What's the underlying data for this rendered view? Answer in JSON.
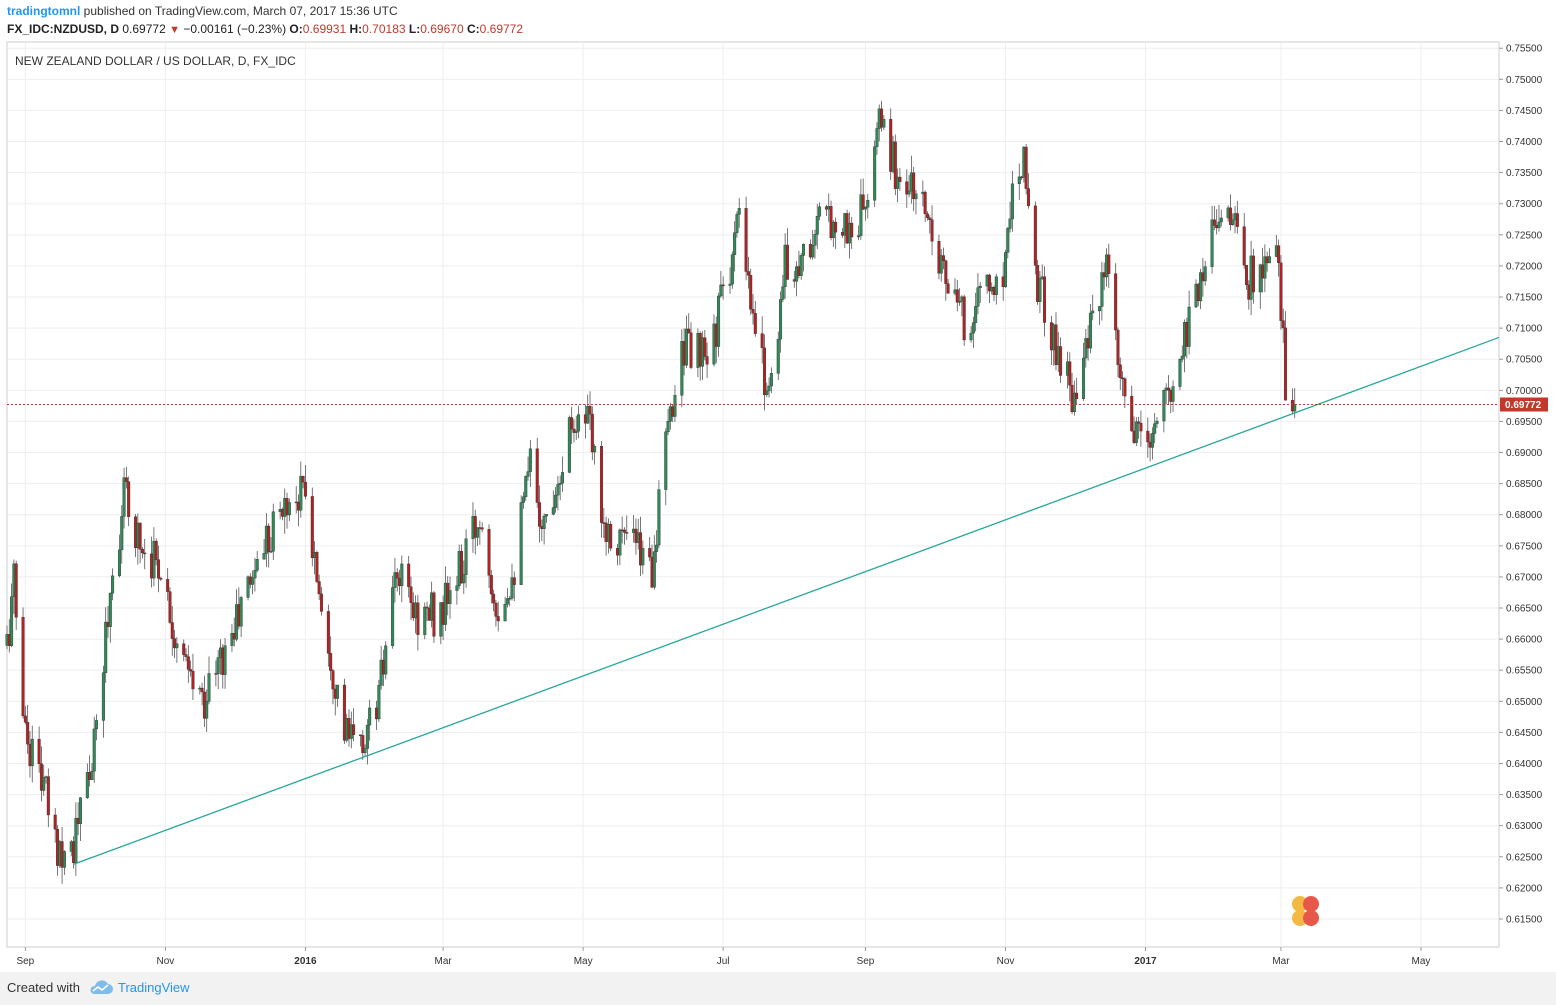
{
  "header": {
    "author": "tradingtomnl",
    "published": "published on TradingView.com, March 07, 2017 15:36 UTC",
    "symbol": "FX_IDC:NZDUSD, D",
    "last": "0.69772",
    "change_arrow": "▼",
    "change": "−0.00161 (−0.23%)",
    "o_label": "O:",
    "o_value": "0.69931",
    "h_label": "H:",
    "h_value": "0.70183",
    "l_label": "L:",
    "l_value": "0.69670",
    "c_label": "C:",
    "c_value": "0.69772"
  },
  "footer": {
    "created_with": "Created with",
    "brand": "TradingView"
  },
  "colors": {
    "up": "#2e8b57",
    "down": "#b22222",
    "trendline": "#26a69a",
    "last_price": "#c0392b",
    "grid": "#eeeeee"
  },
  "chart_data": {
    "type": "candlestick",
    "title": "NEW ZEALAND DOLLAR / US DOLLAR, D, FX_IDC",
    "last_price": 0.69772,
    "last_price_label": "0.69772",
    "ylim": [
      0.6105,
      0.756
    ],
    "y_ticks": [
      "0.75500",
      "0.75000",
      "0.74500",
      "0.74000",
      "0.73500",
      "0.73000",
      "0.72500",
      "0.72000",
      "0.71500",
      "0.71000",
      "0.70500",
      "0.70000",
      "0.69500",
      "0.69000",
      "0.68500",
      "0.68000",
      "0.67500",
      "0.67000",
      "0.66500",
      "0.66000",
      "0.65500",
      "0.65000",
      "0.64500",
      "0.64000",
      "0.63500",
      "0.63000",
      "0.62500",
      "0.62000",
      "0.61500"
    ],
    "x_ticks": [
      "Sep",
      "Nov",
      "2016",
      "Mar",
      "May",
      "Jul",
      "Sep",
      "Nov",
      "2017",
      "Mar",
      "May"
    ],
    "x_tick_dates": [
      "2015-09-01",
      "2015-11-01",
      "2016-01-01",
      "2016-03-01",
      "2016-05-01",
      "2016-07-01",
      "2016-09-01",
      "2016-11-01",
      "2017-01-01",
      "2017-03-01",
      "2017-05-01"
    ],
    "x_range": [
      "2015-08-24",
      "2017-06-04"
    ],
    "grid": true,
    "trendline": {
      "from": {
        "date": "2015-09-22",
        "price": 0.6238
      },
      "to": {
        "date": "2017-06-04",
        "price": 0.7085
      }
    },
    "anchors": [
      [
        "2015-08-24",
        0.659
      ],
      [
        "2015-08-27",
        0.669
      ],
      [
        "2015-09-01",
        0.645
      ],
      [
        "2015-09-08",
        0.638
      ],
      [
        "2015-09-14",
        0.627
      ],
      [
        "2015-09-22",
        0.627
      ],
      [
        "2015-10-01",
        0.642
      ],
      [
        "2015-10-08",
        0.668
      ],
      [
        "2015-10-14",
        0.683
      ],
      [
        "2015-10-22",
        0.675
      ],
      [
        "2015-10-30",
        0.672
      ],
      [
        "2015-11-08",
        0.656
      ],
      [
        "2015-11-17",
        0.65
      ],
      [
        "2015-11-27",
        0.658
      ],
      [
        "2015-12-03",
        0.664
      ],
      [
        "2015-12-14",
        0.676
      ],
      [
        "2015-12-24",
        0.682
      ],
      [
        "2015-12-31",
        0.684
      ],
      [
        "2016-01-10",
        0.662
      ],
      [
        "2016-01-18",
        0.645
      ],
      [
        "2016-01-25",
        0.642
      ],
      [
        "2016-02-02",
        0.651
      ],
      [
        "2016-02-10",
        0.67
      ],
      [
        "2016-02-18",
        0.664
      ],
      [
        "2016-02-29",
        0.664
      ],
      [
        "2016-03-10",
        0.672
      ],
      [
        "2016-03-17",
        0.68
      ],
      [
        "2016-03-25",
        0.665
      ],
      [
        "2016-04-01",
        0.672
      ],
      [
        "2016-04-08",
        0.688
      ],
      [
        "2016-04-14",
        0.678
      ],
      [
        "2016-04-20",
        0.687
      ],
      [
        "2016-04-27",
        0.696
      ],
      [
        "2016-05-03",
        0.695
      ],
      [
        "2016-05-11",
        0.678
      ],
      [
        "2016-05-20",
        0.676
      ],
      [
        "2016-05-31",
        0.672
      ],
      [
        "2016-06-07",
        0.693
      ],
      [
        "2016-06-13",
        0.708
      ],
      [
        "2016-06-24",
        0.704
      ],
      [
        "2016-06-30",
        0.714
      ],
      [
        "2016-07-08",
        0.727
      ],
      [
        "2016-07-14",
        0.71
      ],
      [
        "2016-07-21",
        0.7
      ],
      [
        "2016-07-28",
        0.72
      ],
      [
        "2016-08-04",
        0.721
      ],
      [
        "2016-08-11",
        0.726
      ],
      [
        "2016-08-18",
        0.728
      ],
      [
        "2016-08-26",
        0.725
      ],
      [
        "2016-09-02",
        0.731
      ],
      [
        "2016-09-08",
        0.744
      ],
      [
        "2016-09-14",
        0.735
      ],
      [
        "2016-09-22",
        0.732
      ],
      [
        "2016-09-30",
        0.727
      ],
      [
        "2016-10-08",
        0.715
      ],
      [
        "2016-10-15",
        0.71
      ],
      [
        "2016-10-22",
        0.717
      ],
      [
        "2016-10-30",
        0.716
      ],
      [
        "2016-11-04",
        0.733
      ],
      [
        "2016-11-09",
        0.739
      ],
      [
        "2016-11-14",
        0.719
      ],
      [
        "2016-11-22",
        0.708
      ],
      [
        "2016-11-30",
        0.7
      ],
      [
        "2016-12-08",
        0.709
      ],
      [
        "2016-12-15",
        0.719
      ],
      [
        "2016-12-20",
        0.703
      ],
      [
        "2016-12-27",
        0.692
      ],
      [
        "2017-01-03",
        0.692
      ],
      [
        "2017-01-12",
        0.7
      ],
      [
        "2017-01-20",
        0.712
      ],
      [
        "2017-01-26",
        0.72
      ],
      [
        "2017-02-01",
        0.729
      ],
      [
        "2017-02-07",
        0.729
      ],
      [
        "2017-02-14",
        0.718
      ],
      [
        "2017-02-22",
        0.719
      ],
      [
        "2017-02-28",
        0.72
      ],
      [
        "2017-03-03",
        0.702
      ],
      [
        "2017-03-07",
        0.6977
      ]
    ]
  }
}
